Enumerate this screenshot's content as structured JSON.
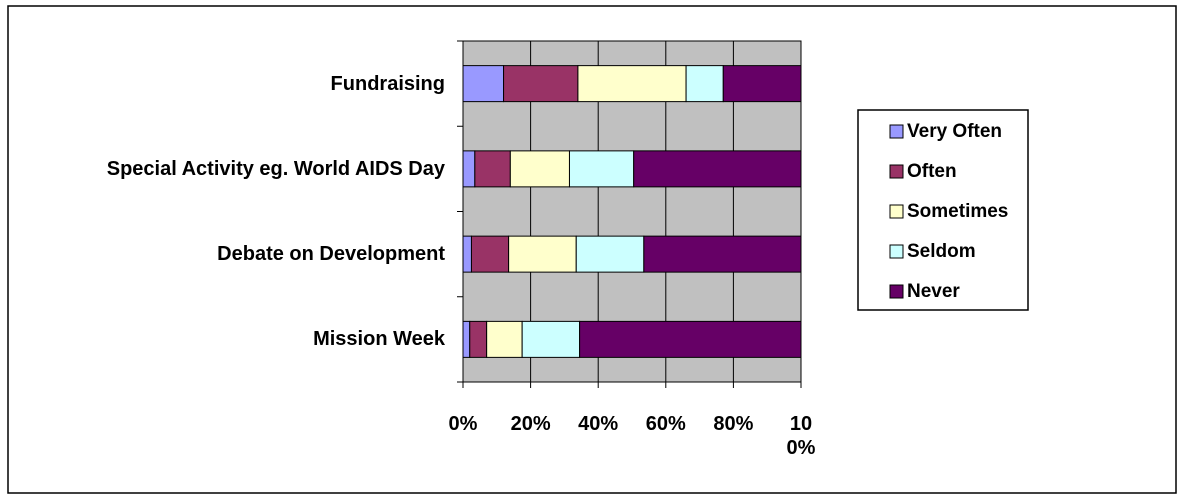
{
  "chart_data": {
    "type": "stacked_barh",
    "categories": [
      "Fundraising",
      "Special Activity eg. World AIDS Day",
      "Debate on Development",
      "Mission Week"
    ],
    "series": [
      {
        "name": "Very Often",
        "color": "#9999ff",
        "values": [
          12,
          3.5,
          2.5,
          2
        ]
      },
      {
        "name": "Often",
        "color": "#993366",
        "values": [
          22,
          10.5,
          11,
          5
        ]
      },
      {
        "name": "Sometimes",
        "color": "#ffffcc",
        "values": [
          32,
          17.5,
          20,
          10.5
        ]
      },
      {
        "name": "Seldom",
        "color": "#ccffff",
        "values": [
          11,
          19,
          20,
          17
        ]
      },
      {
        "name": "Never",
        "color": "#660066",
        "values": [
          23,
          49.5,
          46.5,
          65.5
        ]
      }
    ],
    "xlim": [
      0,
      100
    ],
    "xticks": [
      {
        "value": 0,
        "label": "0%"
      },
      {
        "value": 20,
        "label": "20%"
      },
      {
        "value": 40,
        "label": "40%"
      },
      {
        "value": 60,
        "label": "60%"
      },
      {
        "value": 80,
        "label": "80%"
      },
      {
        "value": 100,
        "label": "100%"
      }
    ],
    "grid": true,
    "legend": "right"
  }
}
